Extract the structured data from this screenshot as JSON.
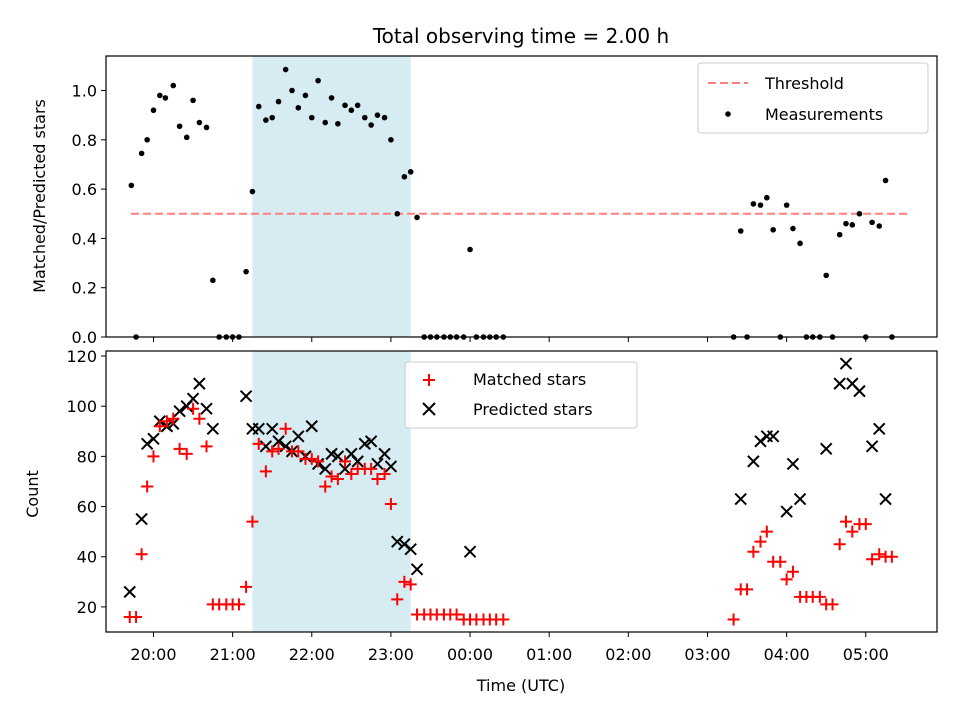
{
  "colors": {
    "threshold": "#ff7f7f",
    "measurement": "#000000",
    "matched": "#ff0000",
    "predicted": "#000000",
    "shade": "#add8e6"
  },
  "chart_data": [
    {
      "type": "scatter",
      "title": "Total observing time = 2.00 h",
      "xlabel": "",
      "ylabel": "Matched/Predicted stars",
      "x_unit": "hours UTC (continuous, >24 = next day)",
      "xlim": [
        "19:24",
        "05:54"
      ],
      "ylim": [
        0,
        1.14
      ],
      "yticks": [
        "0.0",
        "0.2",
        "0.4",
        "0.6",
        "0.8",
        "1.0"
      ],
      "shaded_interval": [
        "21:15",
        "23:15"
      ],
      "legend": {
        "position": "top-right",
        "entries": [
          "Threshold",
          "Measurements"
        ]
      },
      "threshold": {
        "name": "Threshold",
        "y": 0.5,
        "x_range": [
          "19:43",
          "05:33"
        ],
        "style": "dashed"
      },
      "series": [
        {
          "name": "Measurements",
          "points": [
            [
              19.72,
              0.615
            ],
            [
              19.78,
              0
            ],
            [
              19.85,
              0.745
            ],
            [
              19.92,
              0.8
            ],
            [
              20.0,
              0.92
            ],
            [
              20.08,
              0.98
            ],
            [
              20.15,
              0.97
            ],
            [
              20.25,
              1.02
            ],
            [
              20.33,
              0.855
            ],
            [
              20.42,
              0.81
            ],
            [
              20.5,
              0.96
            ],
            [
              20.58,
              0.87
            ],
            [
              20.67,
              0.85
            ],
            [
              20.75,
              0.23
            ],
            [
              20.83,
              0
            ],
            [
              20.92,
              0
            ],
            [
              21.0,
              0
            ],
            [
              21.08,
              0
            ],
            [
              21.17,
              0.265
            ],
            [
              21.25,
              0.59
            ],
            [
              21.33,
              0.935
            ],
            [
              21.42,
              0.88
            ],
            [
              21.5,
              0.89
            ],
            [
              21.58,
              0.955
            ],
            [
              21.67,
              1.085
            ],
            [
              21.75,
              1.0
            ],
            [
              21.83,
              0.93
            ],
            [
              21.92,
              0.98
            ],
            [
              22.0,
              0.89
            ],
            [
              22.08,
              1.04
            ],
            [
              22.17,
              0.87
            ],
            [
              22.25,
              0.97
            ],
            [
              22.33,
              0.865
            ],
            [
              22.42,
              0.94
            ],
            [
              22.5,
              0.92
            ],
            [
              22.58,
              0.94
            ],
            [
              22.67,
              0.89
            ],
            [
              22.75,
              0.86
            ],
            [
              22.83,
              0.9
            ],
            [
              22.92,
              0.89
            ],
            [
              23.0,
              0.8
            ],
            [
              23.08,
              0.5
            ],
            [
              23.17,
              0.65
            ],
            [
              23.25,
              0.67
            ],
            [
              23.33,
              0.485
            ],
            [
              23.42,
              0
            ],
            [
              23.5,
              0
            ],
            [
              23.58,
              0
            ],
            [
              23.67,
              0
            ],
            [
              23.75,
              0
            ],
            [
              23.83,
              0
            ],
            [
              23.92,
              0
            ],
            [
              24.0,
              0.355
            ],
            [
              24.08,
              0
            ],
            [
              24.17,
              0
            ],
            [
              24.25,
              0
            ],
            [
              24.33,
              0
            ],
            [
              24.42,
              0
            ],
            [
              27.33,
              0
            ],
            [
              27.42,
              0.43
            ],
            [
              27.5,
              0
            ],
            [
              27.58,
              0.54
            ],
            [
              27.67,
              0.535
            ],
            [
              27.75,
              0.565
            ],
            [
              27.83,
              0.435
            ],
            [
              27.92,
              0
            ],
            [
              28.0,
              0.535
            ],
            [
              28.08,
              0.44
            ],
            [
              28.17,
              0.38
            ],
            [
              28.25,
              0
            ],
            [
              28.33,
              0
            ],
            [
              28.42,
              0
            ],
            [
              28.5,
              0.25
            ],
            [
              28.58,
              0
            ],
            [
              28.67,
              0.415
            ],
            [
              28.75,
              0.46
            ],
            [
              28.83,
              0.455
            ],
            [
              28.92,
              0.5
            ],
            [
              29.0,
              0
            ],
            [
              29.08,
              0.465
            ],
            [
              29.17,
              0.45
            ],
            [
              29.25,
              0.635
            ],
            [
              29.33,
              0
            ]
          ]
        }
      ]
    },
    {
      "type": "scatter",
      "title": "",
      "xlabel": "Time (UTC)",
      "ylabel": "Count",
      "xlim": [
        "19:24",
        "05:54"
      ],
      "ylim": [
        10,
        122
      ],
      "xticks": [
        "20:00",
        "21:00",
        "22:00",
        "23:00",
        "00:00",
        "01:00",
        "02:00",
        "03:00",
        "04:00",
        "05:00"
      ],
      "yticks": [
        "20",
        "40",
        "60",
        "80",
        "100",
        "120"
      ],
      "shaded_interval": [
        "21:15",
        "23:15"
      ],
      "legend": {
        "position": "top-center",
        "entries": [
          "Matched stars",
          "Predicted stars"
        ]
      },
      "series": [
        {
          "name": "Matched stars",
          "marker": "plus",
          "points": [
            [
              19.7,
              16
            ],
            [
              19.78,
              16
            ],
            [
              19.85,
              41
            ],
            [
              19.92,
              68
            ],
            [
              20.0,
              80
            ],
            [
              20.08,
              92
            ],
            [
              20.17,
              94
            ],
            [
              20.25,
              95
            ],
            [
              20.33,
              83
            ],
            [
              20.42,
              81
            ],
            [
              20.5,
              99
            ],
            [
              20.58,
              95
            ],
            [
              20.67,
              84
            ],
            [
              20.75,
              21
            ],
            [
              20.83,
              21
            ],
            [
              20.92,
              21
            ],
            [
              21.0,
              21
            ],
            [
              21.08,
              21
            ],
            [
              21.17,
              28
            ],
            [
              21.25,
              54
            ],
            [
              21.33,
              85
            ],
            [
              21.42,
              74
            ],
            [
              21.5,
              82
            ],
            [
              21.58,
              83
            ],
            [
              21.67,
              91
            ],
            [
              21.75,
              82
            ],
            [
              21.83,
              82
            ],
            [
              21.92,
              79
            ],
            [
              22.0,
              79
            ],
            [
              22.08,
              78
            ],
            [
              22.17,
              68
            ],
            [
              22.25,
              72
            ],
            [
              22.33,
              71
            ],
            [
              22.42,
              78
            ],
            [
              22.5,
              73
            ],
            [
              22.58,
              75
            ],
            [
              22.67,
              75
            ],
            [
              22.75,
              75
            ],
            [
              22.83,
              71
            ],
            [
              22.92,
              73
            ],
            [
              23.0,
              61
            ],
            [
              23.08,
              23
            ],
            [
              23.17,
              30
            ],
            [
              23.25,
              29
            ],
            [
              23.33,
              17
            ],
            [
              23.42,
              17
            ],
            [
              23.5,
              17
            ],
            [
              23.58,
              17
            ],
            [
              23.67,
              17
            ],
            [
              23.75,
              17
            ],
            [
              23.83,
              17
            ],
            [
              23.92,
              15
            ],
            [
              24.0,
              15
            ],
            [
              24.08,
              15
            ],
            [
              24.17,
              15
            ],
            [
              24.25,
              15
            ],
            [
              24.33,
              15
            ],
            [
              24.42,
              15
            ],
            [
              27.33,
              15
            ],
            [
              27.42,
              27
            ],
            [
              27.5,
              27
            ],
            [
              27.58,
              42
            ],
            [
              27.67,
              46
            ],
            [
              27.75,
              50
            ],
            [
              27.83,
              38
            ],
            [
              27.92,
              38
            ],
            [
              28.0,
              31
            ],
            [
              28.08,
              34
            ],
            [
              28.17,
              24
            ],
            [
              28.25,
              24
            ],
            [
              28.33,
              24
            ],
            [
              28.42,
              24
            ],
            [
              28.5,
              21
            ],
            [
              28.58,
              21
            ],
            [
              28.67,
              45
            ],
            [
              28.75,
              54
            ],
            [
              28.83,
              50
            ],
            [
              28.92,
              53
            ],
            [
              29.0,
              53
            ],
            [
              29.08,
              39
            ],
            [
              29.17,
              41
            ],
            [
              29.25,
              40
            ],
            [
              29.33,
              40
            ]
          ]
        },
        {
          "name": "Predicted stars",
          "marker": "x",
          "points": [
            [
              19.7,
              26
            ],
            [
              19.85,
              55
            ],
            [
              19.92,
              85
            ],
            [
              20.0,
              87
            ],
            [
              20.08,
              94
            ],
            [
              20.17,
              92
            ],
            [
              20.25,
              93
            ],
            [
              20.33,
              98
            ],
            [
              20.42,
              100
            ],
            [
              20.5,
              103
            ],
            [
              20.58,
              109
            ],
            [
              20.67,
              99
            ],
            [
              20.75,
              91
            ],
            [
              21.17,
              104
            ],
            [
              21.25,
              91
            ],
            [
              21.33,
              91
            ],
            [
              21.42,
              84
            ],
            [
              21.5,
              91
            ],
            [
              21.58,
              86
            ],
            [
              21.67,
              84
            ],
            [
              21.75,
              82
            ],
            [
              21.83,
              88
            ],
            [
              21.92,
              80
            ],
            [
              22.0,
              92
            ],
            [
              22.08,
              77
            ],
            [
              22.17,
              75
            ],
            [
              22.25,
              81
            ],
            [
              22.33,
              80
            ],
            [
              22.42,
              75
            ],
            [
              22.5,
              81
            ],
            [
              22.58,
              78
            ],
            [
              22.67,
              85
            ],
            [
              22.75,
              86
            ],
            [
              22.83,
              77
            ],
            [
              22.92,
              81
            ],
            [
              23.0,
              76
            ],
            [
              23.08,
              46
            ],
            [
              23.17,
              45
            ],
            [
              23.25,
              43
            ],
            [
              23.33,
              35
            ],
            [
              24.0,
              42
            ],
            [
              27.42,
              63
            ],
            [
              27.58,
              78
            ],
            [
              27.67,
              86
            ],
            [
              27.75,
              88
            ],
            [
              27.83,
              88
            ],
            [
              28.0,
              58
            ],
            [
              28.08,
              77
            ],
            [
              28.17,
              63
            ],
            [
              28.5,
              83
            ],
            [
              28.67,
              109
            ],
            [
              28.75,
              117
            ],
            [
              28.83,
              109
            ],
            [
              28.92,
              106
            ],
            [
              29.08,
              84
            ],
            [
              29.17,
              91
            ],
            [
              29.25,
              63
            ]
          ]
        }
      ]
    }
  ]
}
